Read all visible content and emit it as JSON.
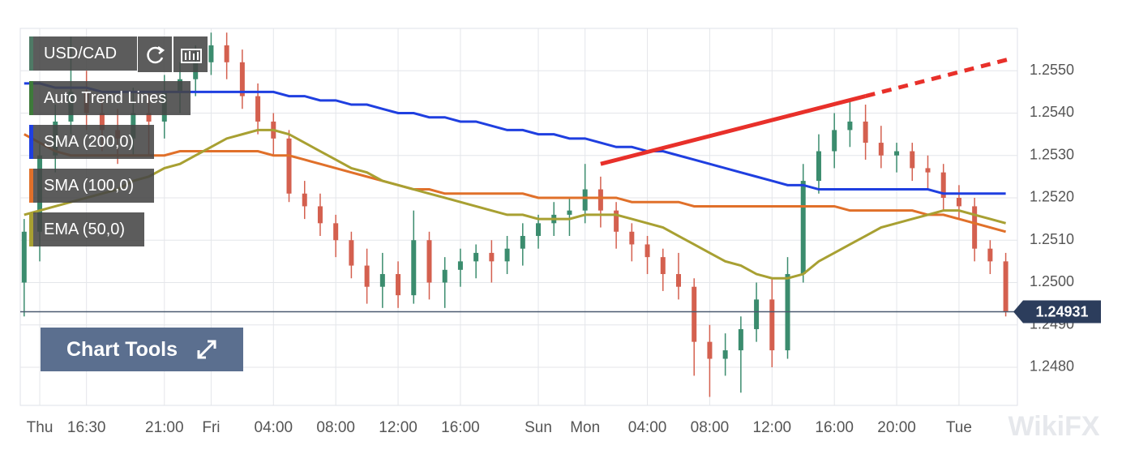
{
  "chart_data": {
    "type": "candlestick",
    "title": "USD/CAD",
    "categories": [
      null,
      "Thu",
      null,
      null,
      "16:30",
      null,
      null,
      null,
      null,
      "21:00",
      null,
      null,
      "Fri",
      null,
      null,
      null,
      "04:00",
      null,
      null,
      null,
      "08:00",
      null,
      null,
      null,
      "12:00",
      null,
      null,
      null,
      "16:00",
      null,
      null,
      null,
      null,
      "Sun",
      null,
      null,
      "Mon",
      null,
      null,
      null,
      "04:00",
      null,
      null,
      null,
      "08:00",
      null,
      null,
      null,
      "12:00",
      null,
      null,
      null,
      "16:00",
      null,
      null,
      null,
      "20:00",
      null,
      null,
      null,
      "Tue",
      null,
      null,
      null
    ],
    "open": [
      1.25,
      1.2512,
      1.253,
      1.2538,
      1.2545,
      1.254,
      1.2536,
      1.2534,
      1.254,
      1.2538,
      1.2545,
      1.2548,
      1.2552,
      1.2556,
      1.2552,
      1.2544,
      1.2538,
      1.2534,
      1.2521,
      1.2518,
      1.2514,
      1.251,
      1.2504,
      1.2499,
      1.2502,
      1.2497,
      1.251,
      1.25,
      1.2503,
      1.2505,
      1.2507,
      1.2505,
      1.2508,
      1.2511,
      1.2514,
      1.2516,
      1.2517,
      1.2522,
      1.2517,
      1.2512,
      1.2509,
      1.2506,
      1.2502,
      1.2499,
      1.2486,
      1.2482,
      1.2484,
      1.2489,
      1.2496,
      1.2484,
      1.2502,
      1.2524,
      1.2531,
      1.2536,
      1.2538,
      1.2533,
      1.253,
      1.2531,
      1.2527,
      1.2526,
      1.252,
      1.2518,
      1.2508,
      1.2505
    ],
    "high": [
      1.2515,
      1.2533,
      1.2542,
      1.2558,
      1.255,
      1.2544,
      1.2541,
      1.2546,
      1.2545,
      1.2549,
      1.2552,
      1.2556,
      1.2559,
      1.2559,
      1.2555,
      1.2547,
      1.254,
      1.2536,
      1.2524,
      1.2521,
      1.2516,
      1.2512,
      1.2508,
      1.2507,
      1.2505,
      1.2517,
      1.2512,
      1.2506,
      1.2508,
      1.2509,
      1.251,
      1.2511,
      1.2514,
      1.2516,
      1.2519,
      1.252,
      1.2528,
      1.2525,
      1.2519,
      1.2514,
      1.2511,
      1.2508,
      1.2507,
      1.2501,
      1.249,
      1.2488,
      1.2492,
      1.25,
      1.2501,
      1.2506,
      1.2528,
      1.2535,
      1.254,
      1.2543,
      1.2542,
      1.2537,
      1.2533,
      1.2533,
      1.253,
      1.2528,
      1.2523,
      1.252,
      1.251,
      1.2507
    ],
    "low": [
      1.2492,
      1.2505,
      1.2526,
      1.2535,
      1.2536,
      1.2531,
      1.2528,
      1.253,
      1.253,
      1.2534,
      1.254,
      1.2544,
      1.2549,
      1.2548,
      1.2541,
      1.2535,
      1.253,
      1.2519,
      1.2515,
      1.2511,
      1.2506,
      1.2501,
      1.2495,
      1.2494,
      1.2494,
      1.2495,
      1.2496,
      1.2494,
      1.2499,
      1.2501,
      1.25,
      1.2502,
      1.2504,
      1.2508,
      1.2511,
      1.2511,
      1.2514,
      1.2513,
      1.2508,
      1.2505,
      1.2502,
      1.2498,
      1.2496,
      1.2478,
      1.2473,
      1.2478,
      1.2474,
      1.2486,
      1.248,
      1.2482,
      1.25,
      1.2521,
      1.2527,
      1.2532,
      1.2529,
      1.2527,
      1.2526,
      1.2524,
      1.2522,
      1.2517,
      1.2515,
      1.2505,
      1.2502,
      1.2492
    ],
    "close": [
      1.2512,
      1.253,
      1.2538,
      1.2545,
      1.254,
      1.2536,
      1.2534,
      1.254,
      1.2538,
      1.2545,
      1.2548,
      1.2552,
      1.2556,
      1.2552,
      1.2544,
      1.2538,
      1.2534,
      1.2521,
      1.2518,
      1.2514,
      1.251,
      1.2504,
      1.2499,
      1.2502,
      1.2497,
      1.251,
      1.25,
      1.2503,
      1.2505,
      1.2507,
      1.2505,
      1.2508,
      1.2511,
      1.2514,
      1.2516,
      1.2517,
      1.2522,
      1.2517,
      1.2512,
      1.2509,
      1.2506,
      1.2502,
      1.2499,
      1.2486,
      1.2482,
      1.2484,
      1.2489,
      1.2496,
      1.2484,
      1.2502,
      1.2524,
      1.2531,
      1.2536,
      1.2538,
      1.2533,
      1.253,
      1.2531,
      1.2527,
      1.2526,
      1.252,
      1.2518,
      1.2508,
      1.2505,
      1.2493
    ],
    "up_color": "#3b8c6e",
    "down_color": "#d4604f",
    "series": [
      {
        "name": "SMA (200,0)",
        "color": "#1f3fe0",
        "values": [
          1.2547,
          1.2547,
          1.2546,
          1.2546,
          1.2546,
          1.2545,
          1.2545,
          1.2545,
          1.2545,
          1.2545,
          1.2545,
          1.2545,
          1.2545,
          1.2545,
          1.2545,
          1.2545,
          1.2545,
          1.2544,
          1.2544,
          1.2543,
          1.2543,
          1.2542,
          1.2542,
          1.2541,
          1.254,
          1.254,
          1.2539,
          1.2539,
          1.2538,
          1.2538,
          1.2537,
          1.2536,
          1.2536,
          1.2535,
          1.2535,
          1.2534,
          1.2534,
          1.2533,
          1.2532,
          1.2532,
          1.2531,
          1.2531,
          1.253,
          1.2529,
          1.2528,
          1.2527,
          1.2526,
          1.2525,
          1.2524,
          1.2523,
          1.2523,
          1.2522,
          1.2522,
          1.2522,
          1.2522,
          1.2522,
          1.2522,
          1.2522,
          1.2522,
          1.2521,
          1.2521,
          1.2521,
          1.2521,
          1.2521
        ]
      },
      {
        "name": "SMA (100,0)",
        "color": "#e0702a",
        "values": [
          1.2535,
          1.2533,
          1.2531,
          1.253,
          1.253,
          1.253,
          1.253,
          1.253,
          1.253,
          1.253,
          1.2531,
          1.2531,
          1.2531,
          1.2531,
          1.2531,
          1.2531,
          1.253,
          1.253,
          1.2529,
          1.2528,
          1.2527,
          1.2526,
          1.2525,
          1.2524,
          1.2523,
          1.2522,
          1.2522,
          1.2521,
          1.2521,
          1.2521,
          1.2521,
          1.2521,
          1.2521,
          1.252,
          1.252,
          1.252,
          1.252,
          1.252,
          1.252,
          1.2519,
          1.2519,
          1.2519,
          1.2519,
          1.2518,
          1.2518,
          1.2518,
          1.2518,
          1.2518,
          1.2518,
          1.2518,
          1.2518,
          1.2518,
          1.2518,
          1.2517,
          1.2517,
          1.2517,
          1.2517,
          1.2517,
          1.2516,
          1.2516,
          1.2515,
          1.2514,
          1.2513,
          1.2512
        ]
      },
      {
        "name": "EMA (50,0)",
        "color": "#a8a032",
        "values": [
          1.2516,
          1.2517,
          1.2518,
          1.2519,
          1.252,
          1.2521,
          1.2522,
          1.2524,
          1.2525,
          1.2527,
          1.2528,
          1.253,
          1.2532,
          1.2534,
          1.2535,
          1.2536,
          1.2536,
          1.2535,
          1.2533,
          1.2531,
          1.2529,
          1.2527,
          1.2526,
          1.2524,
          1.2523,
          1.2522,
          1.2521,
          1.252,
          1.2519,
          1.2518,
          1.2517,
          1.2516,
          1.2516,
          1.2515,
          1.2515,
          1.2515,
          1.2516,
          1.2516,
          1.2516,
          1.2515,
          1.2514,
          1.2513,
          1.2511,
          1.2509,
          1.2507,
          1.2505,
          1.2504,
          1.2502,
          1.2501,
          1.2501,
          1.2502,
          1.2505,
          1.2507,
          1.2509,
          1.2511,
          1.2513,
          1.2514,
          1.2515,
          1.2516,
          1.2517,
          1.2517,
          1.2516,
          1.2515,
          1.2514
        ]
      }
    ],
    "trend_line": {
      "name": "Auto Trend Lines",
      "color": "#e8302a",
      "x": [
        37,
        54
      ],
      "values": [
        1.2528,
        1.2544
      ],
      "projection_x": [
        54,
        63.5
      ],
      "projection_values": [
        1.2544,
        1.2553
      ]
    },
    "last_price": {
      "value": 1.24931,
      "label": "1.24931"
    },
    "ylim": [
      1.2471,
      1.256
    ],
    "yticks": [
      {
        "value": 1.248,
        "label": "1.2480"
      },
      {
        "value": 1.249,
        "label": "1.2490"
      },
      {
        "value": 1.25,
        "label": "1.2500"
      },
      {
        "value": 1.251,
        "label": "1.2510"
      },
      {
        "value": 1.252,
        "label": "1.2520"
      },
      {
        "value": 1.253,
        "label": "1.2530"
      },
      {
        "value": 1.254,
        "label": "1.2540"
      },
      {
        "value": 1.255,
        "label": "1.2550"
      }
    ],
    "grid": true,
    "tool_button": "Chart Tools",
    "watermark": "WikiFX"
  }
}
